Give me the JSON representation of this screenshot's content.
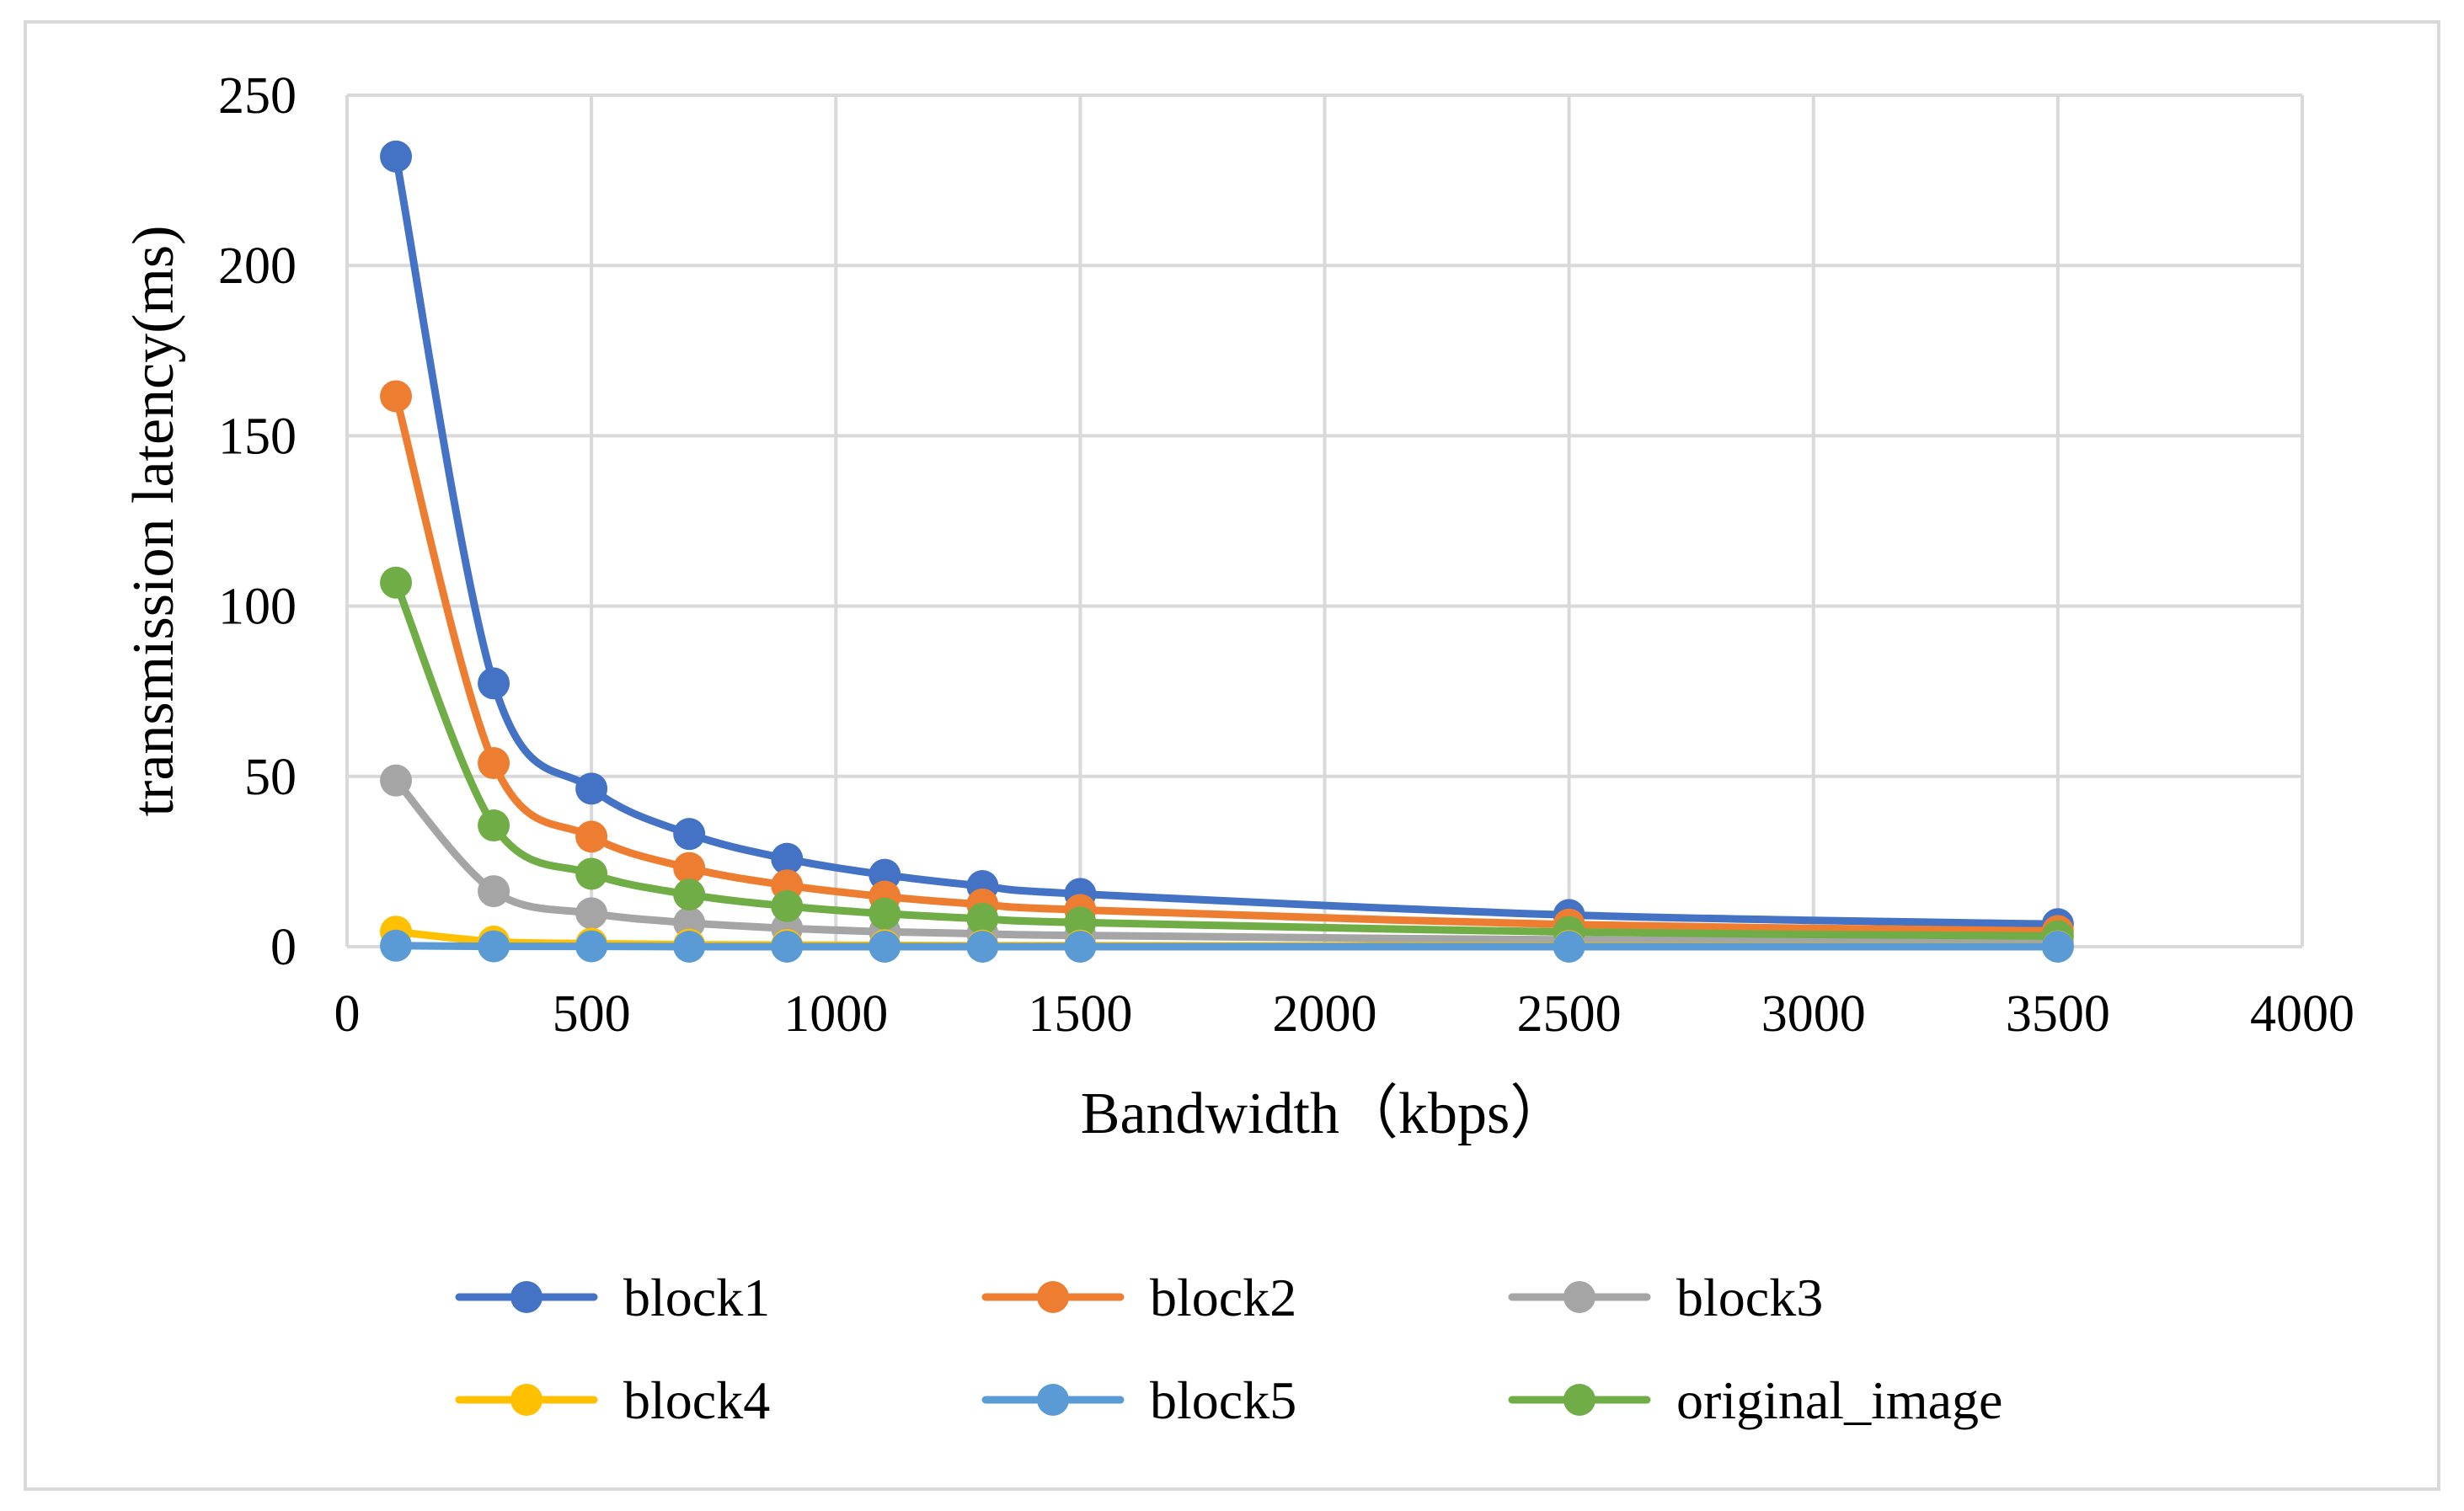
{
  "chart_data": {
    "type": "line",
    "title": "",
    "xlabel": "Bandwidth（kbps）",
    "ylabel": "transmission latency(ms)",
    "xlim": [
      0,
      4000
    ],
    "ylim": [
      0,
      250
    ],
    "xticks": [
      0,
      500,
      1000,
      1500,
      2000,
      2500,
      3000,
      3500,
      4000
    ],
    "yticks": [
      0,
      50,
      100,
      150,
      200,
      250
    ],
    "grid": true,
    "smooth": true,
    "legend_position": "bottom",
    "x": [
      100,
      300,
      500,
      700,
      900,
      1100,
      1300,
      1500,
      2500,
      3500
    ],
    "series": [
      {
        "name": "block1",
        "color": "#4472c4",
        "values": [
          232.0,
          77.3,
          46.4,
          33.1,
          25.8,
          21.1,
          17.8,
          15.5,
          9.3,
          6.6
        ]
      },
      {
        "name": "block2",
        "color": "#ed7d31",
        "values": [
          161.6,
          53.9,
          32.3,
          23.1,
          18.0,
          14.7,
          12.4,
          10.8,
          6.5,
          4.6
        ]
      },
      {
        "name": "block3",
        "color": "#a5a5a5",
        "values": [
          48.8,
          16.3,
          9.8,
          7.0,
          5.4,
          4.4,
          3.8,
          3.3,
          2.0,
          1.4
        ]
      },
      {
        "name": "block4",
        "color": "#ffc000",
        "values": [
          4.4,
          1.5,
          0.9,
          0.6,
          0.5,
          0.4,
          0.3,
          0.3,
          0.2,
          0.1
        ]
      },
      {
        "name": "block5",
        "color": "#5b9bd5",
        "values": [
          0.3,
          0.1,
          0.1,
          0.0,
          0.0,
          0.0,
          0.0,
          0.0,
          0.0,
          0.0
        ]
      },
      {
        "name": "original_image",
        "color": "#70ad47",
        "values": [
          106.9,
          35.6,
          21.4,
          15.3,
          11.9,
          9.7,
          8.2,
          7.1,
          4.3,
          3.1
        ]
      }
    ]
  }
}
